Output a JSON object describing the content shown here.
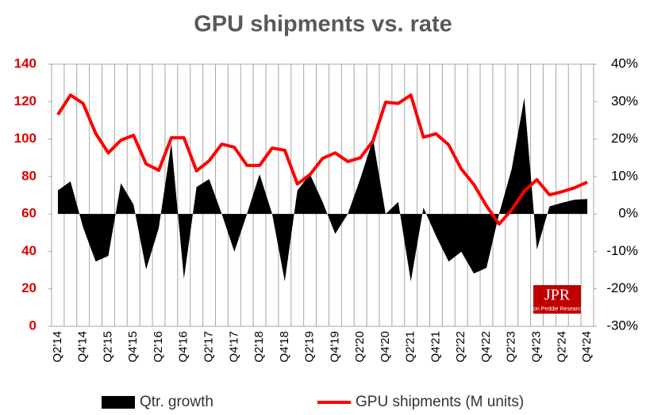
{
  "chart_data": {
    "type": "line-area",
    "title": "GPU shipments vs. rate",
    "categories": [
      "Q2'14",
      null,
      "Q4'14",
      null,
      "Q2'15",
      null,
      "Q4'15",
      null,
      "Q2'16",
      null,
      "Q4'16",
      null,
      "Q2'17",
      null,
      "Q4'17",
      null,
      "Q2'18",
      null,
      "Q4'18",
      null,
      "Q2'19",
      null,
      "Q4'19",
      null,
      "Q2'20",
      null,
      "Q4'20",
      null,
      "Q2'21",
      null,
      "Q4'21",
      null,
      "Q2'22",
      null,
      "Q4'22",
      null,
      "Q2'23",
      null,
      "Q4'23",
      null,
      "Q2'24",
      null,
      "Q4'24"
    ],
    "series": [
      {
        "name": "Qtr. growth",
        "color": "#000000",
        "axis": "y2",
        "kind": "area",
        "values": [
          6.3,
          8.7,
          -3.6,
          -12.7,
          -11.2,
          8.2,
          2.5,
          -14.8,
          -3.8,
          19,
          -17.3,
          7.2,
          9.3,
          0,
          -10.1,
          0,
          10.6,
          0,
          -18,
          6.3,
          10.6,
          3.2,
          -5.3,
          0,
          9.5,
          20,
          0,
          3.2,
          -18,
          1.7,
          -5.9,
          -12.7,
          -10.1,
          -15.9,
          -14.4,
          0,
          12,
          31,
          -9.5,
          2,
          3,
          3.8,
          4
        ]
      },
      {
        "name": "GPU shipments (M units)",
        "color": "#ff0000",
        "axis": "y",
        "kind": "line",
        "values": [
          113,
          123.5,
          119,
          103,
          92.6,
          99.4,
          102,
          86.7,
          83.3,
          100.7,
          100.7,
          83,
          88.4,
          97.3,
          95.6,
          85.9,
          85.9,
          95.2,
          94,
          76,
          81,
          89.7,
          92.6,
          88,
          90,
          99,
          119.7,
          119,
          123.5,
          101,
          102.8,
          96.9,
          84,
          75.7,
          64.3,
          54.6,
          62.2,
          72.3,
          78.3,
          70.2,
          71.9,
          74,
          77
        ]
      }
    ],
    "ylim": [
      0,
      140
    ],
    "yticks": [
      0,
      20,
      40,
      60,
      80,
      100,
      120,
      140
    ],
    "y2lim": [
      -30,
      40
    ],
    "y2ticks": [
      {
        "value": -30,
        "label": "-30%"
      },
      {
        "value": -20,
        "label": "-20%"
      },
      {
        "value": -10,
        "label": "-10%"
      },
      {
        "value": 0,
        "label": "0%"
      },
      {
        "value": 10,
        "label": "10%"
      },
      {
        "value": 20,
        "label": "20%"
      },
      {
        "value": 30,
        "label": "30%"
      },
      {
        "value": 40,
        "label": "40%"
      }
    ],
    "ytick_color": "#e00000",
    "logo": {
      "text": "JPR",
      "subtext": "Jon Peddie Research"
    }
  }
}
